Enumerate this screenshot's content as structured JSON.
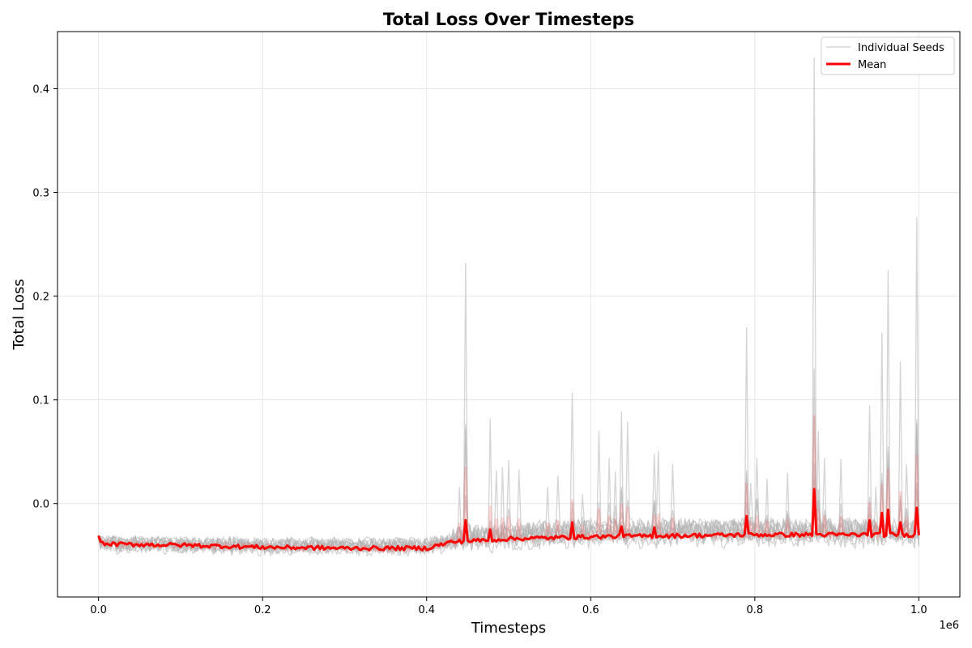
{
  "chart_data": {
    "type": "line",
    "title": "Total Loss Over Timesteps",
    "xlabel": "Timesteps",
    "ylabel": "Total Loss",
    "x_offset_label": "1e6",
    "xlim": [
      -50000,
      1050000
    ],
    "ylim": [
      -0.09,
      0.455
    ],
    "x_ticks": [
      0,
      200000,
      400000,
      600000,
      800000,
      1000000
    ],
    "x_tick_labels": [
      "0.0",
      "0.2",
      "0.4",
      "0.6",
      "0.8",
      "1.0"
    ],
    "y_ticks": [
      0.0,
      0.1,
      0.2,
      0.3,
      0.4
    ],
    "y_tick_labels": [
      "0.0",
      "0.1",
      "0.2",
      "0.3",
      "0.4"
    ],
    "grid": true,
    "legend_position": "top-right",
    "series": [
      {
        "name": "Individual Seeds",
        "color": "#b0b0b0",
        "seed_count": 10,
        "baseline_points": [
          [
            0,
            -0.04
          ],
          [
            200000,
            -0.042
          ],
          [
            400000,
            -0.042
          ],
          [
            450000,
            -0.035
          ],
          [
            600000,
            -0.03
          ],
          [
            800000,
            -0.029
          ],
          [
            1000000,
            -0.03
          ]
        ],
        "spikes": [
          [
            448000,
            0.232
          ],
          [
            478000,
            0.082
          ],
          [
            485000,
            0.032
          ],
          [
            492000,
            0.035
          ],
          [
            500000,
            0.042
          ],
          [
            512000,
            0.033
          ],
          [
            440000,
            0.016
          ],
          [
            548000,
            0.016
          ],
          [
            560000,
            0.027
          ],
          [
            577000,
            0.107
          ],
          [
            590000,
            0.009
          ],
          [
            611000,
            0.07
          ],
          [
            622000,
            0.044
          ],
          [
            630000,
            0.031
          ],
          [
            638000,
            0.089
          ],
          [
            645000,
            0.079
          ],
          [
            677000,
            0.048
          ],
          [
            682000,
            0.051
          ],
          [
            700000,
            0.038
          ],
          [
            790000,
            0.17
          ],
          [
            795000,
            0.02
          ],
          [
            803000,
            0.044
          ],
          [
            815000,
            0.024
          ],
          [
            840000,
            0.03
          ],
          [
            873000,
            0.43
          ],
          [
            878000,
            0.07
          ],
          [
            884000,
            0.044
          ],
          [
            906000,
            0.043
          ],
          [
            940000,
            0.095
          ],
          [
            948000,
            0.016
          ],
          [
            955000,
            0.165
          ],
          [
            962000,
            0.225
          ],
          [
            978000,
            0.137
          ],
          [
            985000,
            0.038
          ],
          [
            998000,
            0.276
          ]
        ]
      },
      {
        "name": "Mean",
        "color": "#ff0000",
        "baseline_points": [
          [
            0,
            -0.031
          ],
          [
            5000,
            -0.039
          ],
          [
            100000,
            -0.04
          ],
          [
            200000,
            -0.042
          ],
          [
            300000,
            -0.043
          ],
          [
            400000,
            -0.043
          ],
          [
            430000,
            -0.037
          ],
          [
            500000,
            -0.034
          ],
          [
            600000,
            -0.032
          ],
          [
            700000,
            -0.031
          ],
          [
            800000,
            -0.03
          ],
          [
            900000,
            -0.03
          ],
          [
            1000000,
            -0.03
          ]
        ],
        "spikes": [
          [
            448000,
            -0.016
          ],
          [
            478000,
            -0.025
          ],
          [
            577000,
            -0.018
          ],
          [
            638000,
            -0.022
          ],
          [
            677000,
            -0.023
          ],
          [
            790000,
            -0.012
          ],
          [
            873000,
            0.014
          ],
          [
            940000,
            -0.016
          ],
          [
            955000,
            -0.009
          ],
          [
            962000,
            -0.006
          ],
          [
            978000,
            -0.018
          ],
          [
            998000,
            -0.004
          ]
        ]
      }
    ]
  }
}
